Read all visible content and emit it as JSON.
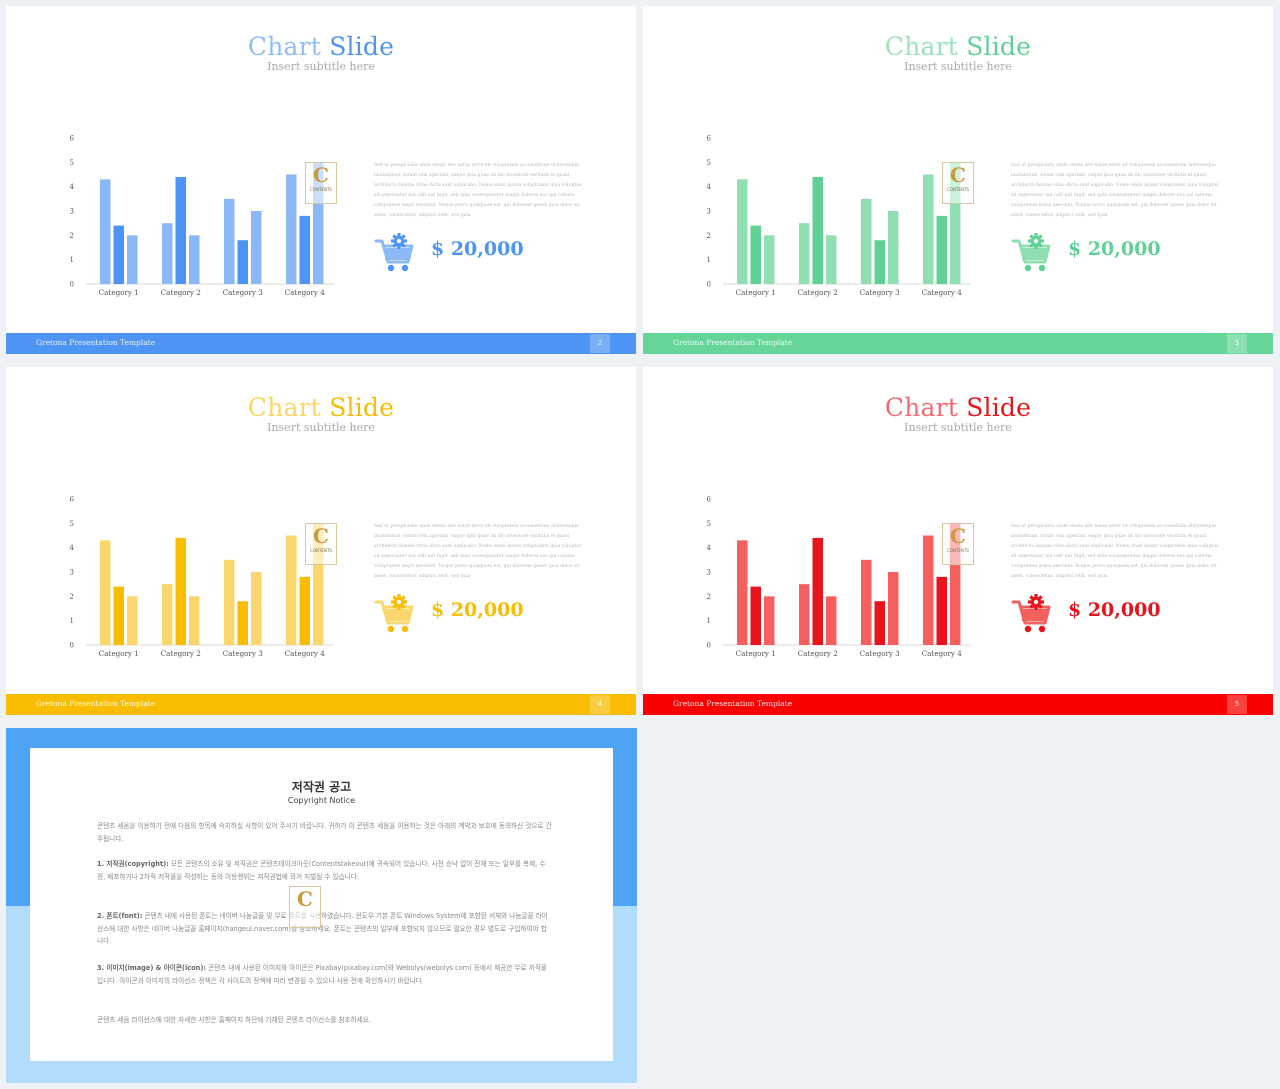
{
  "slides": [
    {
      "title_part1": "Chart",
      "title_part2": "Slide",
      "subtitle": "Insert subtitle here",
      "body_text": "Sed ut perspiciatis unde omnis iste natus error sit voluptatem accusantium doloremque laudantium, totam rem aperiam, eaque ipsa quae ab illo inventore veritatis et quasi architecto beatae vitae dicta sunt explicabo. Nemo enim ipsam voluptatem quia voluptas sit aspernatur aut odit aut fugit, sed quia consequuntur magni dolores eos qui ratione voluptatem sequi nesciunt. Neque porro quisquam est, qui dolorem ipsum quia dolor sit amet, consectetur, adipisci velit, sed quia",
      "price": "$ 20,000",
      "footer_text": "Gretona Presentation Template",
      "page_number": "2",
      "colors": {
        "primary": "#4e94f5",
        "light": "#8bb9f7",
        "footer": "#4e94f5"
      }
    },
    {
      "title_part1": "Chart",
      "title_part2": "Slide",
      "subtitle": "Insert subtitle here",
      "body_text": "Sed ut perspiciatis unde omnis iste natus error sit voluptatem accusantium doloremque laudantium, totam rem aperiam, eaque ipsa quae ab illo inventore veritatis et quasi architecto beatae vitae dicta sunt explicabo. Nemo enim ipsam voluptatem quia voluptas sit aspernatur aut odit aut fugit, sed quia consequuntur magni dolores eos qui ratione voluptatem sequi nesciunt. Neque porro quisquam est, qui dolorem ipsum quia dolor sit amet, consectetur, adipisci velit, sed quia",
      "price": "$ 20,000",
      "footer_text": "Gretona Presentation Template",
      "page_number": "3",
      "colors": {
        "primary": "#5fd195",
        "light": "#8fdfb3",
        "footer": "#66d59a"
      }
    },
    {
      "title_part1": "Chart",
      "title_part2": "Slide",
      "subtitle": "Insert subtitle here",
      "body_text": "Sed ut perspiciatis unde omnis iste natus error sit voluptatem accusantium doloremque laudantium, totam rem aperiam, eaque ipsa quae ab illo inventore veritatis et quasi architecto beatae vitae dicta sunt explicabo. Nemo enim ipsam voluptatem quia voluptas sit aspernatur aut odit aut fugit, sed quia consequuntur magni dolores eos qui ratione voluptatem sequi nesciunt. Neque porro quisquam est, qui dolorem ipsum quia dolor sit amet, consectetur, adipisci velit, sed quia",
      "price": "$ 20,000",
      "footer_text": "Gretona Presentation Template",
      "page_number": "4",
      "colors": {
        "primary": "#f8bd00",
        "light": "#fad76c",
        "footer": "#f8bd00"
      }
    },
    {
      "title_part1": "Chart",
      "title_part2": "Slide",
      "subtitle": "Insert subtitle here",
      "body_text": "Sed ut perspiciatis unde omnis iste natus error sit voluptatem accusantium doloremque laudantium, totam rem aperiam, eaque ipsa quae ab illo inventore veritatis et quasi architecto beatae vitae dicta sunt explicabo. Nemo enim ipsam voluptatem quia voluptas sit aspernatur aut odit aut fugit, sed quia consequuntur magni dolores eos qui ratione voluptatem sequi nesciunt. Neque porro quisquam est, qui dolorem ipsum quia dolor sit amet, consectetur, adipisci velit, sed quia",
      "price": "$ 20,000",
      "footer_text": "Gretona Presentation Template",
      "page_number": "5",
      "colors": {
        "primary": "#e8131b",
        "light": "#f5605f",
        "footer": "#fa0000"
      }
    }
  ],
  "chart_data": {
    "type": "bar",
    "categories": [
      "Category 1",
      "Category 2",
      "Category 3",
      "Category 4"
    ],
    "series": [
      {
        "values": [
          4.3,
          2.5,
          3.5,
          4.5
        ]
      },
      {
        "values": [
          2.4,
          4.4,
          1.8,
          2.8
        ]
      },
      {
        "values": [
          2.0,
          2.0,
          3.0,
          5.0
        ]
      }
    ],
    "ylim": [
      0,
      6
    ],
    "yticks": [
      "0",
      "1",
      "2",
      "3",
      "4",
      "5",
      "6"
    ]
  },
  "logo": {
    "letter": "C",
    "text": "CONTENTS"
  },
  "notice": {
    "title": "저작권 공고",
    "subtitle": "Copyright Notice",
    "p1": "콘텐츠 세움을 이용하기 전에 다음의 항목에 숙지하실 사항이 있어 주시기 바랍니다. 귀하가 이 콘텐츠 세움을 이용하는 것은 아래의 계약과 보호에 동의하신 것으로 간주됩니다.",
    "p2_head": "1. 저작권(copyright):",
    "p2": " 모든 콘텐츠의 소유 및 저작권은 콘텐츠테이크아웃(Contentstakeout)에 귀속되어 있습니다. 사전 승낙 없이 전체 또는 일부를 복제, 수정, 배포하거나 2차적 저작물을 작성하는 등의 이용행위는 저작권법에 의거 처벌될 수 있습니다.",
    "p3_head": "2. 폰트(font):",
    "p3": " 콘텐츠 내에 사용된 폰트는 네이버 나눔글꼴 및 무료 폰트를 사용하였습니다. 윈도우 기본 폰트 Windows System에 포함된 서체와 나눔글꼴 라이선스에 대한 사항은 네이버 나눔글꼴 홈페이지(hangeul.naver.com)를 참조하세요. 폰트는 콘텐츠의 일부에 포함되지 않으므로 필요한 경우 별도로 구입하여야 합니다.",
    "p4_head": "3. 이미지(image) & 아이콘(icon):",
    "p4": " 콘텐츠 내에 사용된 이미지와 아이콘은 Pixabay(pixabay.com)와 Webolys(webolys.com) 등에서 제공한 무료 저작물입니다. 아이콘과 이미지의 라이선스 정책은 각 사이트의 정책에 따라 변경될 수 있으니 사용 전에 확인하시기 바랍니다.",
    "p5": "콘텐츠 세움 라이선스에 대한 자세한 사항은 홈페이지 하단에 기재된 콘텐츠 라이선스를 참조하세요."
  }
}
